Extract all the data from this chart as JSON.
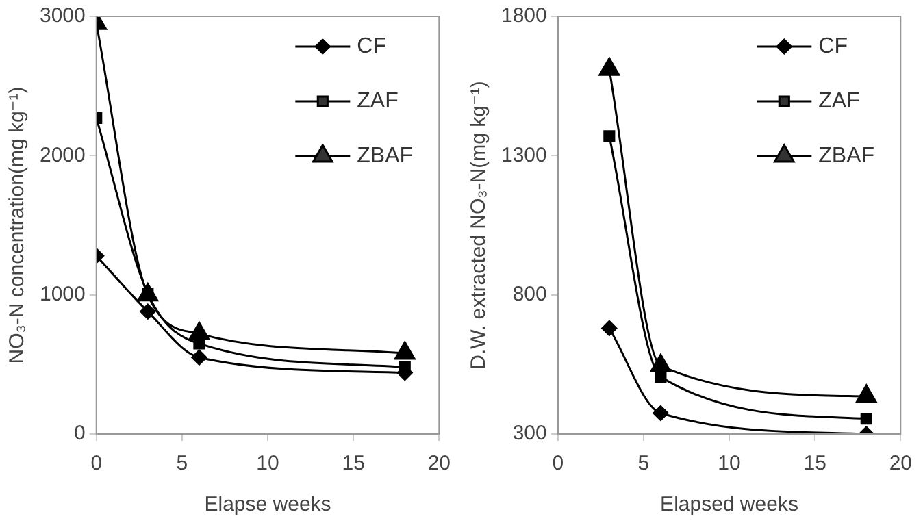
{
  "chart_data": [
    {
      "type": "line",
      "xlabel": "Elapse weeks",
      "ylabel": "NO₃-N concentration(mg kg⁻¹)",
      "x": [
        0,
        3,
        6,
        18
      ],
      "xlim": [
        0,
        20
      ],
      "xticks": [
        0,
        5,
        10,
        15,
        20
      ],
      "ylim": [
        0,
        3000
      ],
      "yticks": [
        0,
        1000,
        2000,
        3000
      ],
      "grid": false,
      "legend": "top right",
      "line_style": "solid",
      "series": [
        {
          "name": "CF",
          "color": "#000000",
          "marker": "diamond",
          "values": [
            1280,
            880,
            550,
            440
          ]
        },
        {
          "name": "ZAF",
          "color": "#000000",
          "marker": "square",
          "values": [
            2270,
            1010,
            650,
            480
          ]
        },
        {
          "name": "ZBAF",
          "color": "#000000",
          "marker": "triangle",
          "values": [
            2950,
            1000,
            720,
            580
          ]
        }
      ]
    },
    {
      "type": "line",
      "xlabel": "Elapsed weeks",
      "ylabel": "D.W. extracted NO₃-N(mg kg⁻¹)",
      "x": [
        3,
        6,
        18
      ],
      "xlim": [
        0,
        20
      ],
      "xticks": [
        0,
        5,
        10,
        15,
        20
      ],
      "ylim": [
        300,
        1800
      ],
      "yticks": [
        300,
        800,
        1300,
        1800
      ],
      "grid": false,
      "legend": "top right",
      "line_style": "solid",
      "series": [
        {
          "name": "CF",
          "color": "#000000",
          "marker": "diamond",
          "values": [
            680,
            375,
            300
          ]
        },
        {
          "name": "ZAF",
          "color": "#000000",
          "marker": "square",
          "values": [
            1370,
            505,
            355
          ]
        },
        {
          "name": "ZBAF",
          "color": "#000000",
          "marker": "triangle",
          "values": [
            1610,
            545,
            435
          ]
        }
      ]
    }
  ]
}
